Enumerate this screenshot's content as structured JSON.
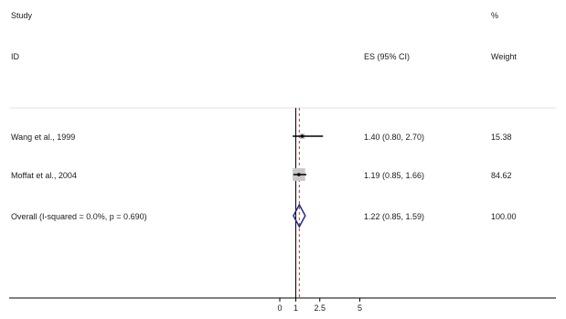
{
  "header": {
    "study_label": "Study",
    "id_label": "ID",
    "es_label": "ES (95% CI)",
    "pct_label": "%",
    "weight_label": "Weight"
  },
  "chart_data": {
    "type": "forest",
    "title": "",
    "xlabel": "",
    "null_line": 1,
    "overall_effect": 1.22,
    "xlim": [
      0,
      5.2
    ],
    "xticks": [
      0,
      1,
      2.5,
      5
    ],
    "rows": [
      {
        "study": "Wang et al., 1999",
        "es": 1.4,
        "lower": 0.8,
        "upper": 2.7,
        "ci_text": "1.40 (0.80, 2.70)",
        "weight": "15.38",
        "kind": "study"
      },
      {
        "study": "Moffat et al., 2004",
        "es": 1.19,
        "lower": 0.85,
        "upper": 1.66,
        "ci_text": "1.19 (0.85, 1.66)",
        "weight": "84.62",
        "kind": "study"
      },
      {
        "study": "Overall  (I-squared = 0.0%, p = 0.690)",
        "es": 1.22,
        "lower": 0.85,
        "upper": 1.59,
        "ci_text": "1.22 (0.85, 1.59)",
        "weight": "100.00",
        "kind": "overall"
      }
    ],
    "colors": {
      "diamond": "#1f2d8f",
      "overall_line": "#c0392b",
      "box": "#c8c8c8",
      "line": "#000000"
    }
  }
}
